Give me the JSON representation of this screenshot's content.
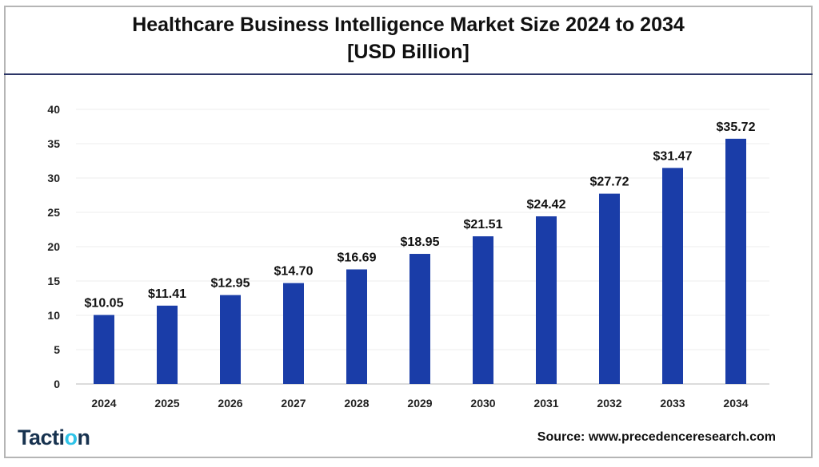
{
  "chart_data": {
    "type": "bar",
    "title": "Healthcare Business Intelligence Market Size 2024 to 2034",
    "subtitle": "[USD Billion]",
    "categories": [
      "2024",
      "2025",
      "2026",
      "2027",
      "2028",
      "2029",
      "2030",
      "2031",
      "2032",
      "2033",
      "2034"
    ],
    "values": [
      10.05,
      11.41,
      12.95,
      14.7,
      16.69,
      18.95,
      21.51,
      24.42,
      27.72,
      31.47,
      35.72
    ],
    "data_labels": [
      "$10.05",
      "$11.41",
      "$12.95",
      "$14.70",
      "$16.69",
      "$18.95",
      "$21.51",
      "$24.42",
      "$27.72",
      "$31.47",
      "$35.72"
    ],
    "yticks": [
      0,
      5,
      10,
      15,
      20,
      25,
      30,
      35,
      40
    ],
    "ylim": [
      0,
      40
    ],
    "xlabel": "",
    "ylabel": "",
    "grid": true,
    "bar_color": "#1a3da8"
  },
  "logo": {
    "text_before": "Tacti",
    "text_o": "o",
    "text_after": "n"
  },
  "source": "Source: www.precedenceresearch.com"
}
